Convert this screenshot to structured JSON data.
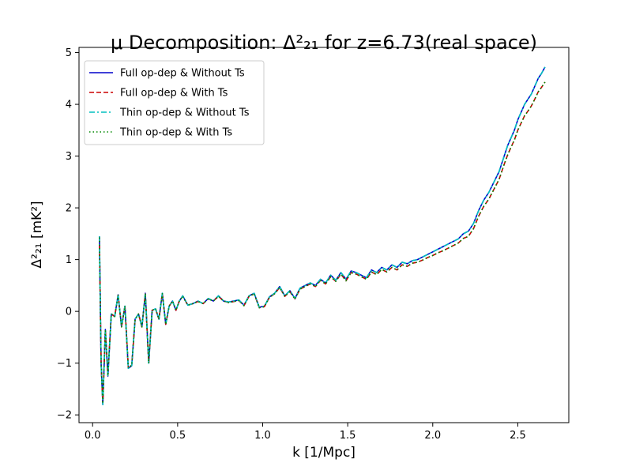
{
  "chart_data": {
    "type": "line",
    "title": "μ Decomposition: Δ²₂₁ for z=6.73(real space)",
    "xlabel": "k [1/Mpc]",
    "ylabel": "Δ²₂₁ [mK²]",
    "xlim": [
      -0.08,
      2.8
    ],
    "ylim": [
      -2.15,
      5.1
    ],
    "xticks": [
      0.0,
      0.5,
      1.0,
      1.5,
      2.0,
      2.5
    ],
    "xtick_labels": [
      "0.0",
      "0.5",
      "1.0",
      "1.5",
      "2.0",
      "2.5"
    ],
    "yticks": [
      -2,
      -1,
      0,
      1,
      2,
      3,
      4,
      5
    ],
    "ytick_labels": [
      "−2",
      "−1",
      "0",
      "1",
      "2",
      "3",
      "4",
      "5"
    ],
    "grid": false,
    "legend_position": "top-left",
    "series": [
      {
        "name": "Full op-dep & Without Ts",
        "color": "#0000cc",
        "dash": "solid",
        "x": [
          0.04,
          0.05,
          0.06,
          0.075,
          0.09,
          0.11,
          0.13,
          0.15,
          0.17,
          0.19,
          0.21,
          0.23,
          0.25,
          0.27,
          0.29,
          0.31,
          0.33,
          0.35,
          0.37,
          0.39,
          0.41,
          0.43,
          0.45,
          0.47,
          0.49,
          0.51,
          0.53,
          0.56,
          0.59,
          0.62,
          0.65,
          0.68,
          0.71,
          0.74,
          0.77,
          0.8,
          0.83,
          0.86,
          0.89,
          0.92,
          0.95,
          0.98,
          1.01,
          1.04,
          1.07,
          1.1,
          1.13,
          1.16,
          1.19,
          1.22,
          1.25,
          1.28,
          1.31,
          1.34,
          1.37,
          1.4,
          1.43,
          1.46,
          1.49,
          1.52,
          1.55,
          1.58,
          1.61,
          1.64,
          1.67,
          1.7,
          1.73,
          1.76,
          1.79,
          1.82,
          1.85,
          1.88,
          1.91,
          1.94,
          1.97,
          2.0,
          2.03,
          2.06,
          2.09,
          2.12,
          2.15,
          2.18,
          2.21,
          2.24,
          2.27,
          2.3,
          2.33,
          2.36,
          2.39,
          2.42,
          2.44,
          2.46,
          2.48,
          2.5,
          2.52,
          2.54,
          2.56,
          2.58,
          2.6,
          2.62,
          2.64,
          2.66
        ],
        "y": [
          1.45,
          -1.0,
          -1.8,
          -0.35,
          -1.25,
          -0.05,
          -0.1,
          0.32,
          -0.3,
          0.1,
          -1.1,
          -1.05,
          -0.15,
          -0.05,
          -0.3,
          0.35,
          -1.0,
          0.02,
          0.05,
          -0.15,
          0.35,
          -0.25,
          0.1,
          0.2,
          0.02,
          0.2,
          0.3,
          0.12,
          0.15,
          0.2,
          0.15,
          0.25,
          0.2,
          0.3,
          0.2,
          0.18,
          0.2,
          0.22,
          0.12,
          0.3,
          0.35,
          0.08,
          0.1,
          0.28,
          0.35,
          0.48,
          0.3,
          0.4,
          0.25,
          0.45,
          0.5,
          0.55,
          0.5,
          0.62,
          0.55,
          0.7,
          0.6,
          0.75,
          0.62,
          0.78,
          0.75,
          0.7,
          0.65,
          0.8,
          0.75,
          0.85,
          0.8,
          0.9,
          0.85,
          0.95,
          0.92,
          0.98,
          1.0,
          1.05,
          1.1,
          1.15,
          1.2,
          1.25,
          1.3,
          1.35,
          1.4,
          1.5,
          1.55,
          1.7,
          1.95,
          2.15,
          2.3,
          2.5,
          2.7,
          3.0,
          3.2,
          3.35,
          3.5,
          3.7,
          3.85,
          4.0,
          4.1,
          4.2,
          4.35,
          4.5,
          4.6,
          4.72
        ]
      },
      {
        "name": "Full op-dep & With Ts",
        "color": "#cc0000",
        "dash": "dashed",
        "x": [
          0.04,
          0.05,
          0.06,
          0.075,
          0.09,
          0.11,
          0.13,
          0.15,
          0.17,
          0.19,
          0.21,
          0.23,
          0.25,
          0.27,
          0.29,
          0.31,
          0.33,
          0.35,
          0.37,
          0.39,
          0.41,
          0.43,
          0.45,
          0.47,
          0.49,
          0.51,
          0.53,
          0.56,
          0.59,
          0.62,
          0.65,
          0.68,
          0.71,
          0.74,
          0.77,
          0.8,
          0.83,
          0.86,
          0.89,
          0.92,
          0.95,
          0.98,
          1.01,
          1.04,
          1.07,
          1.1,
          1.13,
          1.16,
          1.19,
          1.22,
          1.25,
          1.28,
          1.31,
          1.34,
          1.37,
          1.4,
          1.43,
          1.46,
          1.49,
          1.52,
          1.55,
          1.58,
          1.61,
          1.64,
          1.67,
          1.7,
          1.73,
          1.76,
          1.79,
          1.82,
          1.85,
          1.88,
          1.91,
          1.94,
          1.97,
          2.0,
          2.03,
          2.06,
          2.09,
          2.12,
          2.15,
          2.18,
          2.21,
          2.24,
          2.27,
          2.3,
          2.33,
          2.36,
          2.39,
          2.42,
          2.44,
          2.46,
          2.48,
          2.5,
          2.52,
          2.54,
          2.56,
          2.58,
          2.6,
          2.62,
          2.64,
          2.66
        ],
        "y": [
          1.43,
          -1.0,
          -1.78,
          -0.35,
          -1.24,
          -0.05,
          -0.1,
          0.31,
          -0.3,
          0.1,
          -1.09,
          -1.04,
          -0.15,
          -0.05,
          -0.3,
          0.34,
          -1.0,
          0.02,
          0.05,
          -0.15,
          0.34,
          -0.25,
          0.1,
          0.2,
          0.02,
          0.2,
          0.29,
          0.12,
          0.15,
          0.19,
          0.15,
          0.24,
          0.2,
          0.29,
          0.2,
          0.17,
          0.19,
          0.21,
          0.11,
          0.29,
          0.34,
          0.07,
          0.09,
          0.27,
          0.34,
          0.46,
          0.29,
          0.38,
          0.24,
          0.43,
          0.48,
          0.53,
          0.48,
          0.6,
          0.53,
          0.67,
          0.58,
          0.72,
          0.59,
          0.75,
          0.72,
          0.67,
          0.62,
          0.76,
          0.71,
          0.81,
          0.76,
          0.85,
          0.8,
          0.9,
          0.87,
          0.93,
          0.95,
          0.99,
          1.04,
          1.08,
          1.13,
          1.17,
          1.22,
          1.27,
          1.32,
          1.41,
          1.45,
          1.6,
          1.84,
          2.03,
          2.17,
          2.36,
          2.55,
          2.84,
          3.02,
          3.17,
          3.31,
          3.5,
          3.64,
          3.78,
          3.87,
          3.97,
          4.1,
          4.24,
          4.33,
          4.43
        ]
      },
      {
        "name": "Thin op-dep & Without Ts",
        "color": "#00bfbf",
        "dash": "dashdot",
        "x": [
          0.04,
          0.05,
          0.06,
          0.075,
          0.09,
          0.11,
          0.13,
          0.15,
          0.17,
          0.19,
          0.21,
          0.23,
          0.25,
          0.27,
          0.29,
          0.31,
          0.33,
          0.35,
          0.37,
          0.39,
          0.41,
          0.43,
          0.45,
          0.47,
          0.49,
          0.51,
          0.53,
          0.56,
          0.59,
          0.62,
          0.65,
          0.68,
          0.71,
          0.74,
          0.77,
          0.8,
          0.83,
          0.86,
          0.89,
          0.92,
          0.95,
          0.98,
          1.01,
          1.04,
          1.07,
          1.1,
          1.13,
          1.16,
          1.19,
          1.22,
          1.25,
          1.28,
          1.31,
          1.34,
          1.37,
          1.4,
          1.43,
          1.46,
          1.49,
          1.52,
          1.55,
          1.58,
          1.61,
          1.64,
          1.67,
          1.7,
          1.73,
          1.76,
          1.79,
          1.82,
          1.85,
          1.88,
          1.91,
          1.94,
          1.97,
          2.0,
          2.03,
          2.06,
          2.09,
          2.12,
          2.15,
          2.18,
          2.21,
          2.24,
          2.27,
          2.3,
          2.33,
          2.36,
          2.39,
          2.42,
          2.44,
          2.46,
          2.48,
          2.5,
          2.52,
          2.54,
          2.56,
          2.58,
          2.6,
          2.62,
          2.64,
          2.66
        ],
        "y": [
          1.45,
          -1.0,
          -1.8,
          -0.35,
          -1.25,
          -0.05,
          -0.1,
          0.32,
          -0.3,
          0.1,
          -1.1,
          -1.05,
          -0.15,
          -0.05,
          -0.3,
          0.35,
          -1.0,
          0.02,
          0.05,
          -0.15,
          0.35,
          -0.25,
          0.1,
          0.2,
          0.02,
          0.2,
          0.3,
          0.12,
          0.15,
          0.2,
          0.15,
          0.25,
          0.2,
          0.3,
          0.2,
          0.18,
          0.2,
          0.22,
          0.12,
          0.3,
          0.35,
          0.08,
          0.1,
          0.28,
          0.35,
          0.48,
          0.3,
          0.4,
          0.25,
          0.45,
          0.5,
          0.55,
          0.5,
          0.62,
          0.55,
          0.7,
          0.6,
          0.75,
          0.62,
          0.78,
          0.75,
          0.7,
          0.65,
          0.8,
          0.75,
          0.85,
          0.8,
          0.9,
          0.85,
          0.95,
          0.92,
          0.98,
          1.0,
          1.05,
          1.1,
          1.15,
          1.2,
          1.25,
          1.3,
          1.35,
          1.4,
          1.5,
          1.55,
          1.7,
          1.95,
          2.15,
          2.3,
          2.5,
          2.7,
          3.0,
          3.2,
          3.35,
          3.5,
          3.7,
          3.85,
          4.0,
          4.1,
          4.2,
          4.35,
          4.5,
          4.6,
          4.72
        ]
      },
      {
        "name": "Thin op-dep & With Ts",
        "color": "#008800",
        "dash": "dotted",
        "x": [
          0.04,
          0.05,
          0.06,
          0.075,
          0.09,
          0.11,
          0.13,
          0.15,
          0.17,
          0.19,
          0.21,
          0.23,
          0.25,
          0.27,
          0.29,
          0.31,
          0.33,
          0.35,
          0.37,
          0.39,
          0.41,
          0.43,
          0.45,
          0.47,
          0.49,
          0.51,
          0.53,
          0.56,
          0.59,
          0.62,
          0.65,
          0.68,
          0.71,
          0.74,
          0.77,
          0.8,
          0.83,
          0.86,
          0.89,
          0.92,
          0.95,
          0.98,
          1.01,
          1.04,
          1.07,
          1.1,
          1.13,
          1.16,
          1.19,
          1.22,
          1.25,
          1.28,
          1.31,
          1.34,
          1.37,
          1.4,
          1.43,
          1.46,
          1.49,
          1.52,
          1.55,
          1.58,
          1.61,
          1.64,
          1.67,
          1.7,
          1.73,
          1.76,
          1.79,
          1.82,
          1.85,
          1.88,
          1.91,
          1.94,
          1.97,
          2.0,
          2.03,
          2.06,
          2.09,
          2.12,
          2.15,
          2.18,
          2.21,
          2.24,
          2.27,
          2.3,
          2.33,
          2.36,
          2.39,
          2.42,
          2.44,
          2.46,
          2.48,
          2.5,
          2.52,
          2.54,
          2.56,
          2.58,
          2.6,
          2.62,
          2.64,
          2.66
        ],
        "y": [
          1.43,
          -1.0,
          -1.78,
          -0.35,
          -1.24,
          -0.05,
          -0.1,
          0.31,
          -0.3,
          0.1,
          -1.09,
          -1.04,
          -0.15,
          -0.05,
          -0.3,
          0.34,
          -1.0,
          0.02,
          0.05,
          -0.15,
          0.34,
          -0.25,
          0.1,
          0.2,
          0.02,
          0.2,
          0.29,
          0.12,
          0.15,
          0.19,
          0.15,
          0.24,
          0.2,
          0.29,
          0.2,
          0.17,
          0.19,
          0.21,
          0.11,
          0.29,
          0.34,
          0.07,
          0.09,
          0.27,
          0.34,
          0.46,
          0.29,
          0.38,
          0.24,
          0.43,
          0.48,
          0.53,
          0.48,
          0.6,
          0.53,
          0.67,
          0.58,
          0.72,
          0.59,
          0.75,
          0.72,
          0.67,
          0.62,
          0.76,
          0.71,
          0.81,
          0.76,
          0.85,
          0.8,
          0.9,
          0.87,
          0.93,
          0.95,
          0.99,
          1.04,
          1.08,
          1.13,
          1.17,
          1.22,
          1.27,
          1.32,
          1.41,
          1.45,
          1.6,
          1.84,
          2.03,
          2.17,
          2.36,
          2.55,
          2.84,
          3.02,
          3.17,
          3.31,
          3.5,
          3.64,
          3.78,
          3.87,
          3.97,
          4.1,
          4.24,
          4.33,
          4.43
        ]
      }
    ]
  }
}
